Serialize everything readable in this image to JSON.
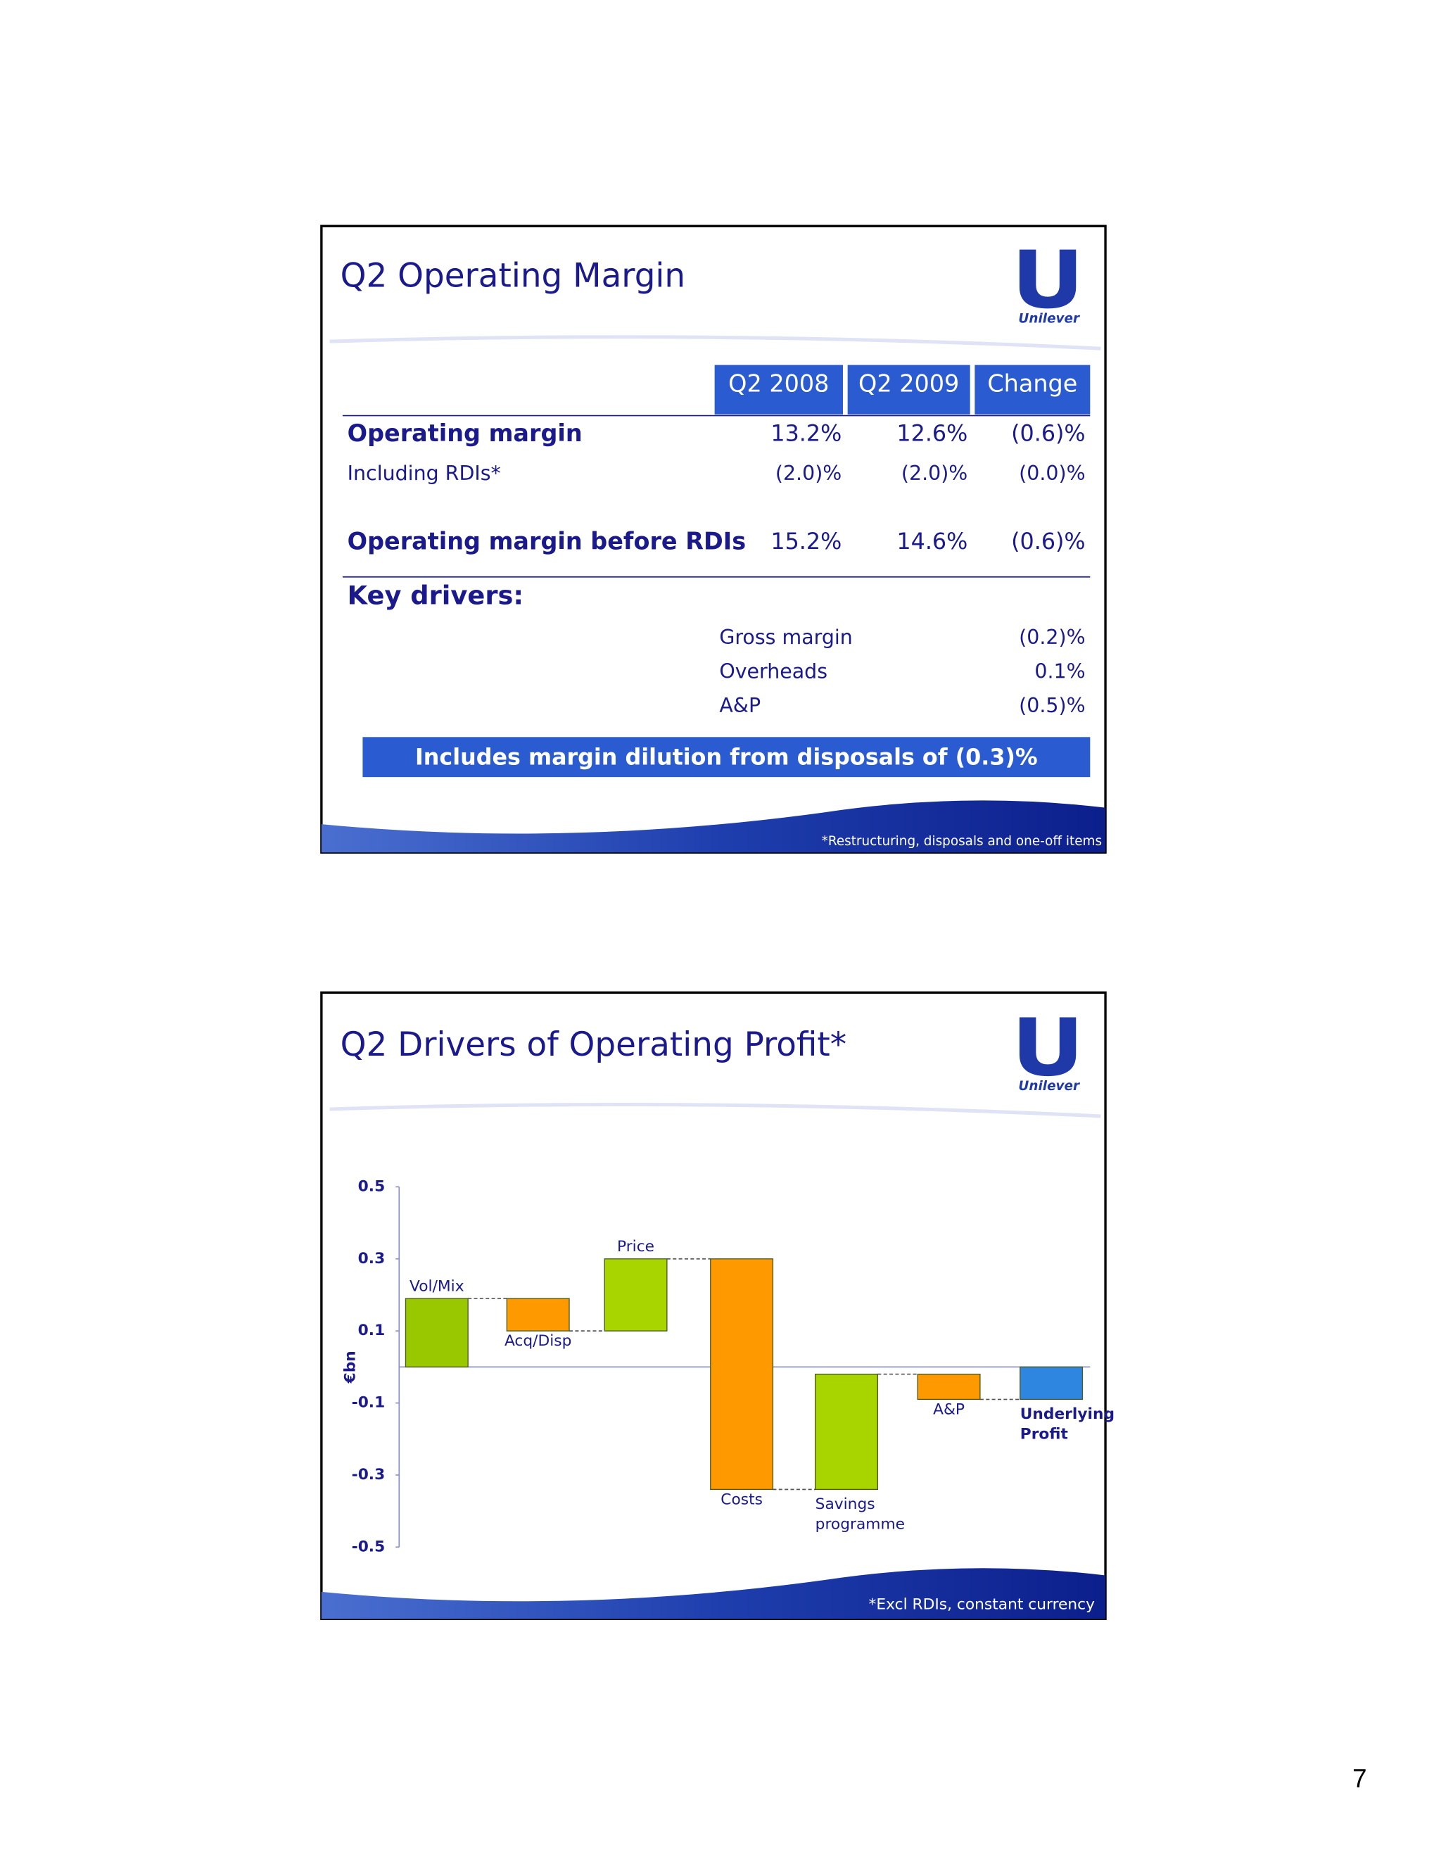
{
  "slide1": {
    "title": "Q2 Operating Margin",
    "logo": "Unilever",
    "table": {
      "columns": [
        "Q2 2008",
        "Q2 2009",
        "Change"
      ],
      "rows": [
        [
          "Operating margin",
          "13.2%",
          "12.6%",
          "(0.6)%"
        ],
        [
          "Including RDIs*",
          "(2.0)%",
          "(2.0)%",
          "(0.0)%"
        ],
        [
          "Operating margin before RDIs",
          "15.2%",
          "14.6%",
          "(0.6)%"
        ]
      ]
    },
    "key_drivers": {
      "label": "Key drivers:",
      "items": [
        [
          "Gross margin",
          "(0.2)%"
        ],
        [
          "Overheads",
          "0.1%"
        ],
        [
          "A&P",
          "(0.5)%"
        ]
      ]
    },
    "callout": "Includes margin dilution from disposals of (0.3)%",
    "footnote": "*Restructuring, disposals and one-off items"
  },
  "slide2": {
    "logo": "Unilever",
    "footnote": "*Excl RDIs, constant currency"
  },
  "chart_data": {
    "type": "waterfall",
    "title": "Q2 Drivers of Operating Profit*",
    "y_label": "€bn",
    "categories": [
      "Vol/Mix",
      "Acq/Disp",
      "Price",
      "Costs",
      "Savings programme",
      "A&P",
      "Underlying Profit"
    ],
    "values": [
      0.19,
      -0.09,
      0.2,
      -0.64,
      0.32,
      -0.07,
      -0.09
    ],
    "colors": [
      "#99c800",
      "#ff9900",
      "#a8d400",
      "#ff9900",
      "#a8d400",
      "#ff9900",
      "#2f86e0"
    ],
    "last_is_total": true,
    "ylim": [
      -0.5,
      0.5
    ],
    "yticks": [
      0.5,
      0.3,
      0.1,
      -0.1,
      -0.3,
      -0.5
    ]
  },
  "page_number": "7"
}
